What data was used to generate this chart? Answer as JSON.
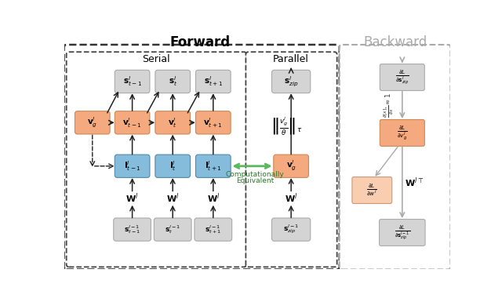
{
  "title_forward": "Forward",
  "title_backward": "Backward",
  "title_serial": "Serial",
  "title_parallel": "Parallel",
  "color_orange": "#F4A97F",
  "color_blue": "#85BBDB",
  "color_gray": "#D4D4D4",
  "color_light_orange": "#F9CDB0",
  "color_green_arrow": "#5CB85C",
  "color_dark_arrow": "#222222",
  "color_light_arrow": "#AAAAAA",
  "bg": "#FFFFFF"
}
